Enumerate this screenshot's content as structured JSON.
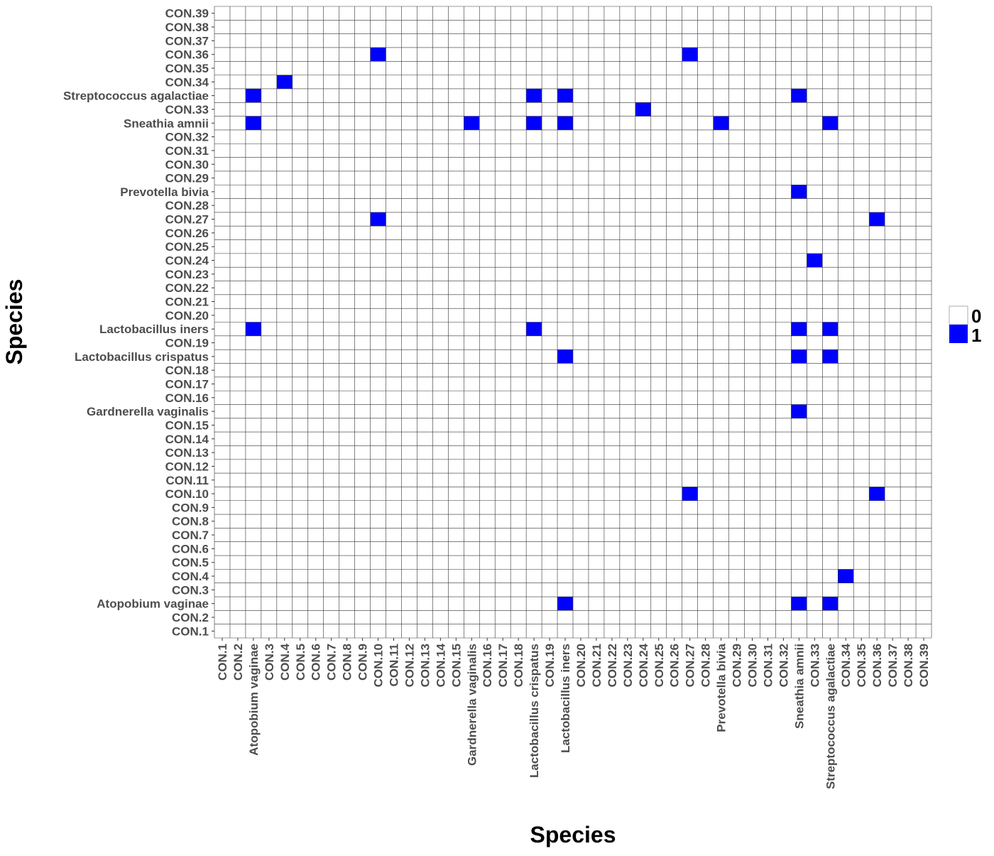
{
  "chart_data": {
    "type": "heatmap",
    "title": "",
    "xlabel": "Species",
    "ylabel": "Species",
    "x_categories": [
      "CON.1",
      "CON.2",
      "Atopobium vaginae",
      "CON.3",
      "CON.4",
      "CON.5",
      "CON.6",
      "CON.7",
      "CON.8",
      "CON.9",
      "CON.10",
      "CON.11",
      "CON.12",
      "CON.13",
      "CON.14",
      "CON.15",
      "Gardnerella vaginalis",
      "CON.16",
      "CON.17",
      "CON.18",
      "Lactobacillus crispatus",
      "CON.19",
      "Lactobacillus iners",
      "CON.20",
      "CON.21",
      "CON.22",
      "CON.23",
      "CON.24",
      "CON.25",
      "CON.26",
      "CON.27",
      "CON.28",
      "Prevotella bivia",
      "CON.29",
      "CON.30",
      "CON.31",
      "CON.32",
      "Sneathia amnii",
      "CON.33",
      "Streptococcus agalactiae",
      "CON.34",
      "CON.35",
      "CON.36",
      "CON.37",
      "CON.38",
      "CON.39"
    ],
    "y_categories": [
      "CON.1",
      "CON.2",
      "Atopobium vaginae",
      "CON.3",
      "CON.4",
      "CON.5",
      "CON.6",
      "CON.7",
      "CON.8",
      "CON.9",
      "CON.10",
      "CON.11",
      "CON.12",
      "CON.13",
      "CON.14",
      "CON.15",
      "Gardnerella vaginalis",
      "CON.16",
      "CON.17",
      "CON.18",
      "Lactobacillus crispatus",
      "CON.19",
      "Lactobacillus iners",
      "CON.20",
      "CON.21",
      "CON.22",
      "CON.23",
      "CON.24",
      "CON.25",
      "CON.26",
      "CON.27",
      "CON.28",
      "Prevotella bivia",
      "CON.29",
      "CON.30",
      "CON.31",
      "CON.32",
      "Sneathia amnii",
      "CON.33",
      "Streptococcus agalactiae",
      "CON.34",
      "CON.35",
      "CON.36",
      "CON.37",
      "CON.38",
      "CON.39"
    ],
    "ones": [
      {
        "x": "Lactobacillus iners",
        "y": "Atopobium vaginae"
      },
      {
        "x": "Sneathia amnii",
        "y": "Atopobium vaginae"
      },
      {
        "x": "Streptococcus agalactiae",
        "y": "Atopobium vaginae"
      },
      {
        "x": "CON.34",
        "y": "CON.4"
      },
      {
        "x": "CON.27",
        "y": "CON.10"
      },
      {
        "x": "CON.36",
        "y": "CON.10"
      },
      {
        "x": "Sneathia amnii",
        "y": "Gardnerella vaginalis"
      },
      {
        "x": "Lactobacillus iners",
        "y": "Lactobacillus crispatus"
      },
      {
        "x": "Sneathia amnii",
        "y": "Lactobacillus crispatus"
      },
      {
        "x": "Streptococcus agalactiae",
        "y": "Lactobacillus crispatus"
      },
      {
        "x": "Atopobium vaginae",
        "y": "Lactobacillus iners"
      },
      {
        "x": "Lactobacillus crispatus",
        "y": "Lactobacillus iners"
      },
      {
        "x": "Sneathia amnii",
        "y": "Lactobacillus iners"
      },
      {
        "x": "Streptococcus agalactiae",
        "y": "Lactobacillus iners"
      },
      {
        "x": "CON.33",
        "y": "CON.24"
      },
      {
        "x": "CON.10",
        "y": "CON.27"
      },
      {
        "x": "CON.36",
        "y": "CON.27"
      },
      {
        "x": "Sneathia amnii",
        "y": "Prevotella bivia"
      },
      {
        "x": "Atopobium vaginae",
        "y": "Sneathia amnii"
      },
      {
        "x": "Gardnerella vaginalis",
        "y": "Sneathia amnii"
      },
      {
        "x": "Lactobacillus crispatus",
        "y": "Sneathia amnii"
      },
      {
        "x": "Lactobacillus iners",
        "y": "Sneathia amnii"
      },
      {
        "x": "Prevotella bivia",
        "y": "Sneathia amnii"
      },
      {
        "x": "Streptococcus agalactiae",
        "y": "Sneathia amnii"
      },
      {
        "x": "CON.24",
        "y": "CON.33"
      },
      {
        "x": "Atopobium vaginae",
        "y": "Streptococcus agalactiae"
      },
      {
        "x": "Lactobacillus crispatus",
        "y": "Streptococcus agalactiae"
      },
      {
        "x": "Lactobacillus iners",
        "y": "Streptococcus agalactiae"
      },
      {
        "x": "Sneathia amnii",
        "y": "Streptococcus agalactiae"
      },
      {
        "x": "CON.4",
        "y": "CON.34"
      },
      {
        "x": "CON.10",
        "y": "CON.36"
      },
      {
        "x": "CON.27",
        "y": "CON.36"
      }
    ],
    "legend": {
      "position": "right",
      "entries": [
        {
          "label": "0",
          "color": "#ffffff"
        },
        {
          "label": "1",
          "color": "#0000ff"
        }
      ]
    },
    "colors": {
      "zero": "#ffffff",
      "one": "#0000ff",
      "grid": "#333333",
      "tick_text": "#4d4d4d"
    }
  }
}
